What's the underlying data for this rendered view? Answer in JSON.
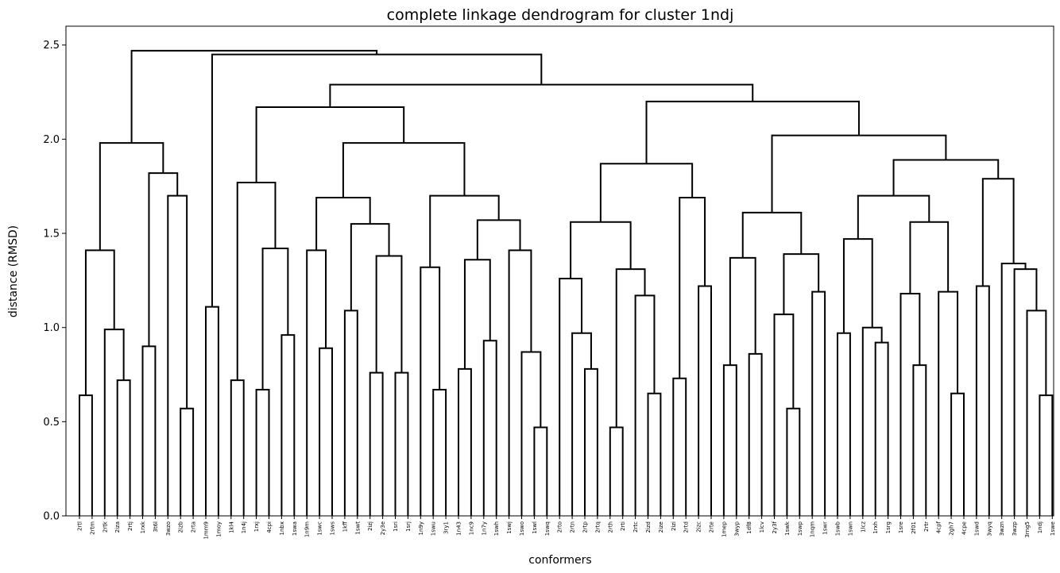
{
  "chart_data": {
    "type": "dendrogram",
    "title": "complete linkage dendrogram for cluster 1ndj",
    "xlabel": "conformers",
    "ylabel": "distance (RMSD)",
    "ylim": [
      0,
      2.6
    ],
    "yticks": [
      "0.0",
      "0.5",
      "1.0",
      "1.5",
      "2.0",
      "2.5"
    ],
    "line_color": "#000000",
    "leaves": [
      "2rtl",
      "2rtm",
      "2rtk",
      "2iza",
      "2rtj",
      "1rxk",
      "3t6l",
      "3wzo",
      "2izb",
      "2rta",
      "1mm9",
      "1moy",
      "1kl4",
      "1n4j",
      "1rxj",
      "4cpi",
      "1nbx",
      "1swa",
      "1n9m",
      "1swc",
      "1sws",
      "1kff",
      "1swt",
      "2izj",
      "2y3e",
      "1sri",
      "1srj",
      "1n9y",
      "1swu",
      "3ry1",
      "1n43",
      "1nc9",
      "1n7y",
      "1swh",
      "1swj",
      "1swo",
      "1swl",
      "1swq",
      "2rto",
      "2rtn",
      "2rtp",
      "2rtq",
      "2rth",
      "2rti",
      "2rtc",
      "2izd",
      "2ize",
      "2izi",
      "2rtd",
      "2izc",
      "2rte",
      "1mep",
      "3wyp",
      "1df8",
      "1lcv",
      "2y3f",
      "1swk",
      "1swp",
      "1nqm",
      "1swr",
      "1swb",
      "1swn",
      "1lcz",
      "1rxh",
      "1srg",
      "1sre",
      "2f01",
      "2rtr",
      "4cpf",
      "2gh7",
      "4cpe",
      "1swd",
      "3wyq",
      "3wzn",
      "3wzp",
      "3rng5",
      "1ndj",
      "1swe"
    ],
    "links": [
      {
        "a": "L0",
        "b": "L1",
        "h": 0.64
      },
      {
        "a": "L3",
        "b": "L4",
        "h": 0.72
      },
      {
        "a": "L2",
        "b": "C1",
        "h": 0.99
      },
      {
        "a": "C0",
        "b": "C2",
        "h": 1.41
      },
      {
        "a": "L5",
        "b": "L6",
        "h": 0.9
      },
      {
        "a": "L8",
        "b": "L9",
        "h": 0.57
      },
      {
        "a": "L7",
        "b": "C5",
        "h": 1.7
      },
      {
        "a": "C4",
        "b": "C6",
        "h": 1.82
      },
      {
        "a": "C3",
        "b": "C7",
        "h": 1.98
      },
      {
        "a": "L10",
        "b": "L11",
        "h": 1.11
      },
      {
        "a": "L12",
        "b": "L13",
        "h": 0.72
      },
      {
        "a": "L14",
        "b": "L15",
        "h": 0.67
      },
      {
        "a": "L16",
        "b": "L17",
        "h": 0.96
      },
      {
        "a": "C11",
        "b": "C12",
        "h": 1.42
      },
      {
        "a": "C10",
        "b": "C13",
        "h": 1.77
      },
      {
        "a": "L19",
        "b": "L20",
        "h": 0.89
      },
      {
        "a": "L18",
        "b": "C15",
        "h": 1.41
      },
      {
        "a": "L21",
        "b": "L22",
        "h": 1.09
      },
      {
        "a": "L23",
        "b": "L24",
        "h": 0.76
      },
      {
        "a": "L25",
        "b": "L26",
        "h": 0.76
      },
      {
        "a": "C18",
        "b": "C19",
        "h": 1.38
      },
      {
        "a": "C17",
        "b": "C20",
        "h": 1.55
      },
      {
        "a": "C16",
        "b": "C21",
        "h": 1.69
      },
      {
        "a": "L28",
        "b": "L29",
        "h": 0.67
      },
      {
        "a": "L27",
        "b": "C23",
        "h": 1.32
      },
      {
        "a": "L30",
        "b": "L31",
        "h": 0.78
      },
      {
        "a": "L32",
        "b": "L33",
        "h": 0.93
      },
      {
        "a": "C25",
        "b": "C26",
        "h": 1.36
      },
      {
        "a": "L36",
        "b": "L37",
        "h": 0.47
      },
      {
        "a": "L35",
        "b": "C28",
        "h": 0.87
      },
      {
        "a": "L34",
        "b": "C29",
        "h": 1.41
      },
      {
        "a": "C27",
        "b": "C30",
        "h": 1.57
      },
      {
        "a": "C24",
        "b": "C31",
        "h": 1.7
      },
      {
        "a": "C22",
        "b": "C32",
        "h": 1.98
      },
      {
        "a": "C14",
        "b": "C33",
        "h": 2.17
      },
      {
        "a": "L40",
        "b": "L41",
        "h": 0.78
      },
      {
        "a": "L39",
        "b": "C35",
        "h": 0.97
      },
      {
        "a": "L38",
        "b": "C36",
        "h": 1.26
      },
      {
        "a": "L42",
        "b": "L43",
        "h": 0.47
      },
      {
        "a": "L45",
        "b": "L46",
        "h": 0.65
      },
      {
        "a": "L44",
        "b": "C39",
        "h": 1.17
      },
      {
        "a": "C38",
        "b": "C40",
        "h": 1.31
      },
      {
        "a": "C37",
        "b": "C41",
        "h": 1.56
      },
      {
        "a": "L47",
        "b": "L48",
        "h": 0.73
      },
      {
        "a": "L49",
        "b": "L50",
        "h": 1.22
      },
      {
        "a": "C43",
        "b": "C44",
        "h": 1.69
      },
      {
        "a": "C42",
        "b": "C45",
        "h": 1.87
      },
      {
        "a": "L51",
        "b": "L52",
        "h": 0.8
      },
      {
        "a": "L53",
        "b": "L54",
        "h": 0.86
      },
      {
        "a": "C47",
        "b": "C48",
        "h": 1.37
      },
      {
        "a": "L56",
        "b": "L57",
        "h": 0.57
      },
      {
        "a": "L55",
        "b": "C50",
        "h": 1.07
      },
      {
        "a": "L58",
        "b": "L59",
        "h": 1.19
      },
      {
        "a": "C51",
        "b": "C52",
        "h": 1.39
      },
      {
        "a": "C49",
        "b": "C53",
        "h": 1.61
      },
      {
        "a": "L60",
        "b": "L61",
        "h": 0.97
      },
      {
        "a": "L63",
        "b": "L64",
        "h": 0.92
      },
      {
        "a": "L62",
        "b": "C56",
        "h": 1.0
      },
      {
        "a": "C55",
        "b": "C57",
        "h": 1.47
      },
      {
        "a": "L66",
        "b": "L67",
        "h": 0.8
      },
      {
        "a": "L65",
        "b": "C59",
        "h": 1.18
      },
      {
        "a": "L69",
        "b": "L70",
        "h": 0.65
      },
      {
        "a": "L68",
        "b": "C61",
        "h": 1.19
      },
      {
        "a": "C60",
        "b": "C62",
        "h": 1.56
      },
      {
        "a": "C58",
        "b": "C63",
        "h": 1.7
      },
      {
        "a": "L71",
        "b": "L72",
        "h": 1.22
      },
      {
        "a": "L76",
        "b": "L77",
        "h": 0.64
      },
      {
        "a": "L75",
        "b": "C66",
        "h": 1.09
      },
      {
        "a": "L74",
        "b": "C67",
        "h": 1.31
      },
      {
        "a": "L73",
        "b": "C68",
        "h": 1.34
      },
      {
        "a": "C65",
        "b": "C69",
        "h": 1.79
      },
      {
        "a": "C64",
        "b": "C70",
        "h": 1.89
      },
      {
        "a": "C54",
        "b": "C71",
        "h": 2.02
      },
      {
        "a": "C46",
        "b": "C72",
        "h": 2.2
      },
      {
        "a": "C34",
        "b": "C73",
        "h": 2.29
      },
      {
        "a": "C9",
        "b": "C74",
        "h": 2.45
      },
      {
        "a": "C8",
        "b": "C75",
        "h": 2.47
      }
    ]
  }
}
